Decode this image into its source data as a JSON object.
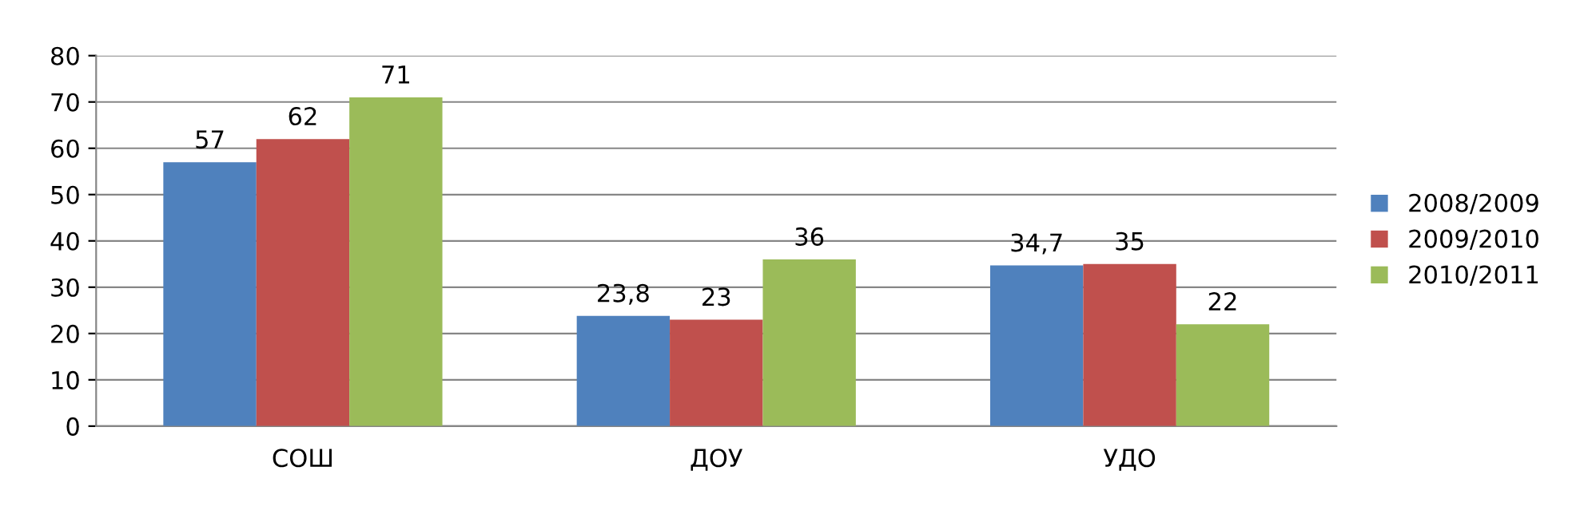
{
  "chart_data": {
    "type": "bar",
    "categories": [
      "СОШ",
      "ДОУ",
      "УДО"
    ],
    "series": [
      {
        "name": "2008/2009",
        "color": "#4f81bd",
        "values": [
          57,
          23.8,
          34.7
        ],
        "value_labels": [
          "57",
          "23,8",
          "34,7"
        ]
      },
      {
        "name": "2009/2010",
        "color": "#c0504d",
        "values": [
          62,
          23,
          35
        ],
        "value_labels": [
          "62",
          "23",
          "35"
        ]
      },
      {
        "name": "2010/2011",
        "color": "#9bbb59",
        "values": [
          71,
          36,
          22
        ],
        "value_labels": [
          "71",
          "36",
          "22"
        ]
      }
    ],
    "ylim": [
      0,
      80
    ],
    "yticks": [
      0,
      10,
      20,
      30,
      40,
      50,
      60,
      70,
      80
    ],
    "grid": "y",
    "legend": "right"
  }
}
